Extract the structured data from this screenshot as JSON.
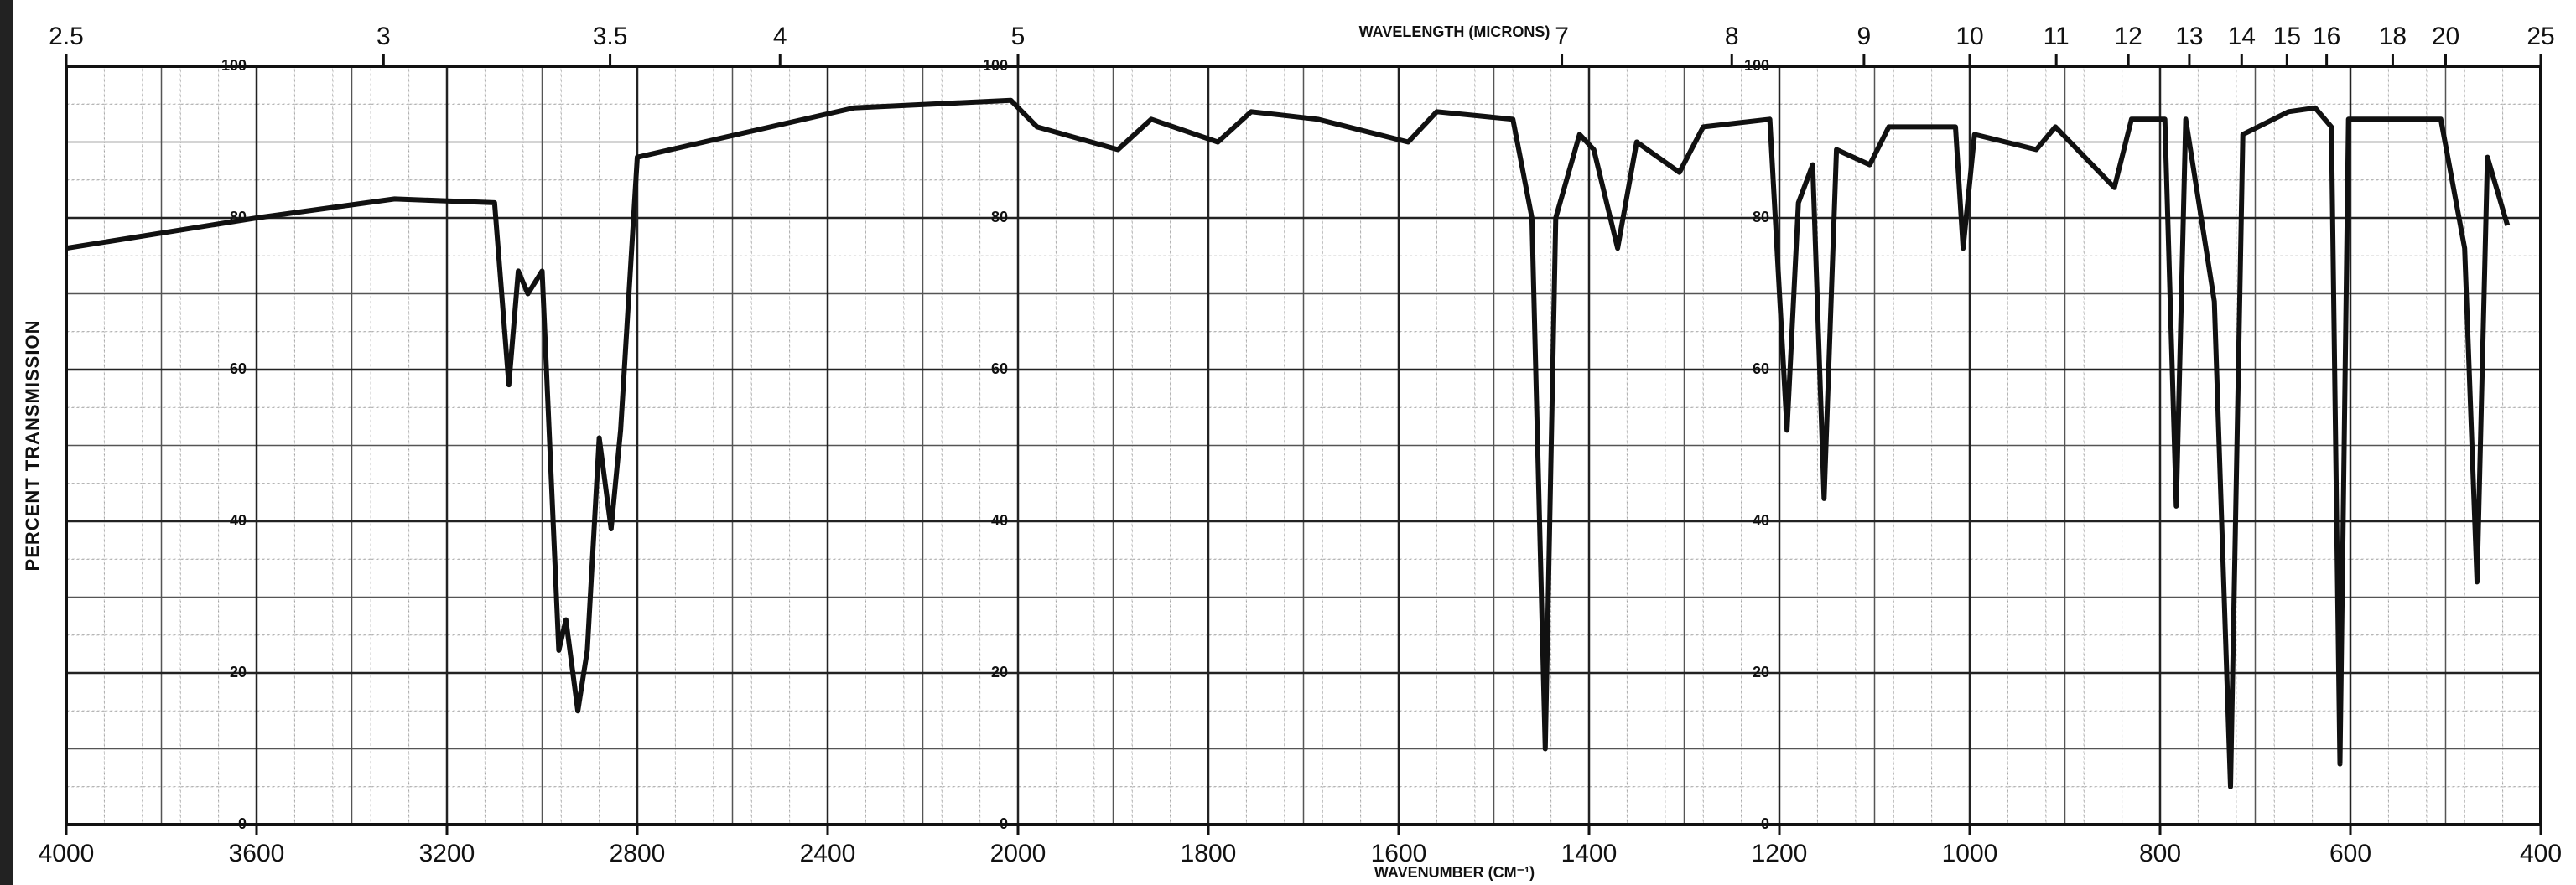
{
  "chart_data": {
    "type": "line",
    "x_label": "WAVENUMBER (CM⁻¹)",
    "x2_label": "WAVELENGTH (MICRONS)",
    "y_label": "PERCENT TRANSMISSION",
    "xlim": [
      4000,
      400
    ],
    "xticks": [
      4000,
      3600,
      3200,
      2800,
      2400,
      2000,
      1800,
      1600,
      1400,
      1200,
      1000,
      800,
      600,
      400
    ],
    "x2ticks": [
      2.5,
      3,
      3.5,
      4,
      5,
      7,
      8,
      9,
      10,
      11,
      12,
      13,
      14,
      15,
      16,
      18,
      20,
      25
    ],
    "ylim": [
      0,
      100
    ],
    "yticks": [
      0,
      20,
      40,
      60,
      80,
      100
    ],
    "grid": true,
    "color": "#111111",
    "x": [
      4000,
      3600,
      3310,
      3100,
      3070,
      3050,
      3030,
      3000,
      2965,
      2950,
      2925,
      2905,
      2880,
      2855,
      2835,
      2800,
      2590,
      2345,
      2015,
      1980,
      1895,
      1860,
      1790,
      1755,
      1685,
      1590,
      1560,
      1480,
      1460,
      1446,
      1435,
      1410,
      1395,
      1370,
      1350,
      1305,
      1280,
      1210,
      1192,
      1180,
      1165,
      1153,
      1140,
      1105,
      1085,
      1015,
      1007,
      995,
      930,
      910,
      848,
      830,
      795,
      783,
      773,
      743,
      726,
      713,
      665,
      637,
      620,
      611,
      602,
      505,
      480,
      467,
      456,
      435
    ],
    "values": [
      76,
      80,
      82.5,
      82,
      58,
      73,
      70,
      73,
      23,
      27,
      15,
      23,
      51,
      39,
      52,
      88,
      91,
      94.5,
      95.5,
      92,
      89,
      93,
      90,
      94,
      93,
      90,
      94,
      93,
      80,
      10,
      80,
      91,
      89,
      76,
      90,
      86,
      92,
      93,
      52,
      82,
      87,
      43,
      89,
      87,
      92,
      92,
      76,
      91,
      89,
      92,
      84,
      93,
      93,
      42,
      93,
      69,
      5,
      91,
      94,
      94.5,
      92,
      8,
      93,
      93,
      76,
      32,
      88,
      79
    ]
  }
}
